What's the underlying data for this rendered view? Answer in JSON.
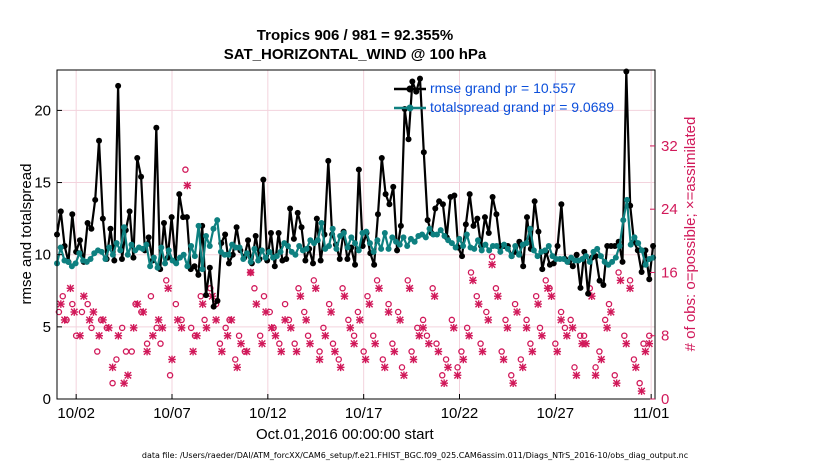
{
  "title_line1": "Tropics 906 / 981 = 92.355%",
  "title_line2": "SAT_HORIZONTAL_WIND @ 100 hPa",
  "x_start_label": "Oct.01,2016 00:00:00 start",
  "footer": "data file: /Users/raeder/DAI/ATM_forcXX/CAM6_setup/f.e21.FHIST_BGC.f09_025.CAM6assim.011/Diags_NTrS_2016-10/obs_diag_output.nc",
  "colors": {
    "rmse": "#000000",
    "spread": "#0e8080",
    "obs": "#d1195a",
    "legend_text": "#0b4fdb",
    "grid": "#f3d3dd"
  },
  "chart_data": {
    "type": "line",
    "xlabel": "",
    "ylabel": "rmse and totalspread",
    "ylabel_right": "# of obs: o=possible; ×=assimilated",
    "xlim": [
      0,
      31.2
    ],
    "ylim": [
      0,
      22.8
    ],
    "ylim_right": [
      0,
      41.6
    ],
    "x_ticks": [
      1,
      6,
      11,
      16,
      21,
      26,
      31
    ],
    "x_tick_labels": [
      "10/02",
      "10/07",
      "10/12",
      "10/17",
      "10/22",
      "10/27",
      "11/01"
    ],
    "y_ticks": [
      0,
      5,
      10,
      15,
      20
    ],
    "y_ticks_right": [
      0,
      8,
      16,
      24,
      32
    ],
    "grid": true,
    "legend_position": "top-right",
    "series": [
      {
        "name": "rmse grand pr = 10.557",
        "axis": "left",
        "values": [
          11.4,
          13.0,
          10.6,
          9.5,
          12.8,
          10.2,
          11.0,
          9.5,
          12.2,
          11.8,
          13.8,
          17.9,
          12.5,
          9.7,
          11.8,
          9.6,
          21.7,
          9.7,
          11.7,
          13.0,
          9.8,
          16.7,
          15.4,
          10.3,
          11.2,
          9.6,
          18.8,
          9.0,
          12.2,
          9.8,
          12.6,
          9.5,
          14.2,
          12.6,
          12.6,
          9.0,
          9.2,
          8.6,
          12.0,
          7.2,
          9.1,
          6.4,
          6.8,
          10.8,
          11.4,
          9.4,
          10.0,
          11.9,
          10.3,
          9.8,
          11.0,
          9.4,
          11.3,
          9.7,
          15.2,
          9.6,
          11.5,
          9.2,
          11.5,
          9.6,
          9.7,
          13.2,
          11.1,
          12.9,
          11.9,
          9.6,
          10.4,
          9.4,
          12.5,
          9.6,
          11.4,
          16.5,
          11.4,
          10.7,
          9.7,
          11.6,
          9.7,
          10.5,
          9.3,
          15.9,
          10.6,
          11.5,
          10.1,
          9.3,
          12.8,
          16.7,
          14.2,
          13.5,
          14.7,
          10.3,
          12.0,
          20.1,
          18.0,
          22.0,
          21.3,
          22.2,
          17.1,
          12.4,
          11.5,
          13.2,
          13.7,
          13.5,
          11.2,
          14.0,
          14.1,
          10.5,
          9.9,
          12.1,
          14.2,
          12.0,
          12.5,
          10.6,
          12.6,
          11.5,
          14.0,
          12.8,
          10.6,
          10.6,
          10.6,
          9.9,
          10.2,
          10.9,
          9.2,
          12.6,
          10.4,
          13.7,
          11.6,
          9.0,
          10.2,
          9.3,
          9.4,
          10.6,
          13.5,
          9.7,
          9.5,
          9.2,
          10.0,
          7.7,
          10.2,
          7.3,
          9.8,
          9.9,
          8.2,
          7.9,
          10.6,
          10.6,
          10.6,
          10.9,
          9.5,
          22.7,
          13.4,
          10.9,
          10.3,
          8.8,
          10.3,
          8.3,
          10.6
        ],
        "color": "#000000"
      },
      {
        "name": "totalspread grand pr = 9.0689",
        "axis": "left",
        "values": [
          9.4,
          10.5,
          9.6,
          9.5,
          9.2,
          9.4,
          10.1,
          9.6,
          9.5,
          9.7,
          10.1,
          10.3,
          10.2,
          9.7,
          10.5,
          10.0,
          10.8,
          10.3,
          11.9,
          10.0,
          10.7,
          10.3,
          10.5,
          10.4,
          10.7,
          9.2,
          9.8,
          9.1,
          10.5,
          9.4,
          10.3,
          9.6,
          9.4,
          9.8,
          10.0,
          9.2,
          10.6,
          9.9,
          12.0,
          9.0,
          11.3,
          10.6,
          11.8,
          12.4,
          10.2,
          10.0,
          10.0,
          10.7,
          10.5,
          10.5,
          9.7,
          10.1,
          9.5,
          10.4,
          9.6,
          10.3,
          9.8,
          10.2,
          9.8,
          9.9,
          10.2,
          10.8,
          10.6,
          10.2,
          10.0,
          10.6,
          10.3,
          10.4,
          11.0,
          10.8,
          11.0,
          12.2,
          10.4,
          10.6,
          11.8,
          10.4,
          11.3,
          11.5,
          10.5,
          11.2,
          10.8,
          10.3,
          11.5,
          11.6,
          10.8,
          10.2,
          11.0,
          10.4,
          11.5,
          10.4,
          11.2,
          10.9,
          10.7,
          11.2,
          10.6,
          11.1,
          10.9,
          11.3,
          11.4,
          11.2,
          11.8,
          11.4,
          11.4,
          11.7,
          11.3,
          11.0,
          10.8,
          10.5,
          11.1,
          10.6,
          11.4,
          10.5,
          10.4,
          11.0,
          10.3,
          10.7,
          10.3,
          10.6,
          10.6,
          10.2,
          10.7,
          10.4,
          9.9,
          10.6,
          10.0,
          10.7,
          10.8,
          11.8,
          10.3,
          9.9,
          10.2,
          10.3,
          10.6,
          9.9,
          9.7,
          9.7,
          9.7,
          9.5,
          9.8,
          9.6,
          9.6,
          9.7,
          9.9,
          9.5,
          10.2,
          10.4,
          9.9,
          9.5,
          9.3,
          9.5,
          9.8,
          10.6,
          12.4,
          13.8,
          10.7,
          11.2,
          10.8,
          10.3,
          9.3,
          9.7,
          9.8
        ],
        "color": "#0e8080"
      },
      {
        "name": "possible",
        "axis": "right",
        "marker": "o",
        "x": [
          0.1,
          0.3,
          0.5,
          0.8,
          1.0,
          1.3,
          1.6,
          1.8,
          2.1,
          2.3,
          2.6,
          2.9,
          3.1,
          3.4,
          3.6,
          3.9,
          4.1,
          4.4,
          4.7,
          4.9,
          5.2,
          5.4,
          5.7,
          5.9,
          6.2,
          6.5,
          6.7,
          7.0,
          7.2,
          7.5,
          7.7,
          8.0,
          8.3,
          8.5,
          8.8,
          9.0,
          9.3,
          9.5,
          9.8,
          10.1,
          10.3,
          10.6,
          10.8,
          11.1,
          11.3,
          11.6,
          11.9,
          12.1,
          12.4,
          12.6,
          12.9,
          13.1,
          13.4,
          13.7,
          13.9,
          14.2,
          14.4,
          14.7,
          14.9,
          15.2,
          15.5,
          15.7,
          16.0,
          16.2,
          16.5,
          16.7,
          17.0,
          17.3,
          17.5,
          17.8,
          18.0,
          18.3,
          18.5,
          18.8,
          19.1,
          19.3,
          19.6,
          19.8,
          20.1,
          20.3,
          20.6,
          20.9,
          21.1,
          21.4,
          21.6,
          21.9,
          22.1,
          22.4,
          22.7,
          22.9,
          23.2,
          23.4,
          23.7,
          23.9,
          24.2,
          24.5,
          24.7,
          25.0,
          25.2,
          25.5,
          25.7,
          26.0,
          26.3,
          26.5,
          26.8,
          27.0,
          27.3,
          27.5,
          27.8,
          28.1,
          28.3,
          28.6,
          28.8,
          29.1,
          29.3,
          29.6,
          29.9,
          30.1,
          30.4,
          30.6,
          30.9
        ],
        "values": [
          11,
          13,
          10,
          12,
          8,
          11,
          12,
          9,
          6,
          10,
          9,
          2,
          5,
          9,
          6,
          6,
          12,
          11,
          7,
          13,
          9,
          7,
          15,
          3,
          12,
          10,
          29,
          9,
          8,
          13,
          10,
          14,
          12,
          7,
          9,
          10,
          5,
          8,
          6,
          16,
          14,
          8,
          13,
          11,
          9,
          7,
          12,
          10,
          7,
          14,
          11,
          8,
          15,
          6,
          9,
          12,
          7,
          5,
          14,
          10,
          8,
          11,
          6,
          13,
          8,
          15,
          5,
          12,
          7,
          11,
          4,
          15,
          6,
          9,
          10,
          8,
          14,
          7,
          3,
          5,
          10,
          4,
          6,
          9,
          16,
          13,
          7,
          11,
          18,
          14,
          6,
          10,
          3,
          12,
          5,
          10,
          7,
          13,
          9,
          15,
          14,
          7,
          11,
          9,
          10,
          4,
          8,
          8,
          14,
          4,
          6,
          10,
          12,
          3,
          16,
          8,
          15,
          5,
          2,
          7,
          8
        ]
      },
      {
        "name": "assimilated",
        "axis": "right",
        "marker": "x",
        "x": [
          0.2,
          0.4,
          0.7,
          0.9,
          1.2,
          1.4,
          1.7,
          1.9,
          2.2,
          2.4,
          2.7,
          2.9,
          3.2,
          3.5,
          3.7,
          4.0,
          4.2,
          4.5,
          4.7,
          5.0,
          5.3,
          5.5,
          5.8,
          6.0,
          6.3,
          6.5,
          6.8,
          7.1,
          7.3,
          7.6,
          7.8,
          8.1,
          8.3,
          8.6,
          8.9,
          9.1,
          9.4,
          9.6,
          9.9,
          10.1,
          10.4,
          10.7,
          10.9,
          11.2,
          11.4,
          11.7,
          11.9,
          12.2,
          12.5,
          12.7,
          13.0,
          13.2,
          13.5,
          13.7,
          14.0,
          14.3,
          14.5,
          14.8,
          15.0,
          15.3,
          15.5,
          15.8,
          16.1,
          16.3,
          16.6,
          16.8,
          17.1,
          17.3,
          17.6,
          17.9,
          18.1,
          18.4,
          18.6,
          18.9,
          19.1,
          19.4,
          19.7,
          19.9,
          20.2,
          20.4,
          20.7,
          20.9,
          21.2,
          21.5,
          21.7,
          22.0,
          22.2,
          22.5,
          22.7,
          23.0,
          23.3,
          23.5,
          23.8,
          24.0,
          24.3,
          24.5,
          24.8,
          25.1,
          25.3,
          25.6,
          25.8,
          26.1,
          26.3,
          26.6,
          26.9,
          27.1,
          27.4,
          27.6,
          27.9,
          28.1,
          28.4,
          28.7,
          28.9,
          29.2,
          29.4,
          29.7,
          29.9,
          30.2,
          30.5,
          30.7,
          30.9
        ],
        "values": [
          12,
          10,
          14,
          11,
          8,
          13,
          10,
          11,
          8,
          10,
          9,
          4,
          8,
          2,
          3,
          9,
          12,
          11,
          6,
          8,
          10,
          9,
          14,
          5,
          10,
          9,
          27,
          6,
          8,
          12,
          9,
          13,
          10,
          6,
          8,
          10,
          4,
          7,
          6,
          16,
          12,
          7,
          11,
          9,
          8,
          6,
          10,
          9,
          6,
          13,
          10,
          7,
          14,
          5,
          8,
          11,
          6,
          4,
          13,
          9,
          7,
          10,
          5,
          12,
          7,
          14,
          4,
          11,
          6,
          10,
          3,
          14,
          5,
          8,
          9,
          7,
          13,
          6,
          2,
          4,
          9,
          3,
          5,
          8,
          15,
          12,
          6,
          10,
          17,
          13,
          5,
          9,
          2,
          11,
          4,
          9,
          6,
          12,
          8,
          14,
          13,
          6,
          10,
          8,
          9,
          3,
          7,
          7,
          13,
          3,
          5,
          9,
          11,
          2,
          15,
          7,
          14,
          4,
          1,
          6,
          7
        ]
      }
    ]
  }
}
